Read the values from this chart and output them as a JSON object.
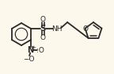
{
  "bg_color": "#fdf8ec",
  "line_color": "#2a2a2a",
  "line_width": 1.3,
  "figsize": [
    1.44,
    0.93
  ],
  "dpi": 100,
  "xlim": [
    0,
    144
  ],
  "ylim": [
    0,
    93
  ]
}
